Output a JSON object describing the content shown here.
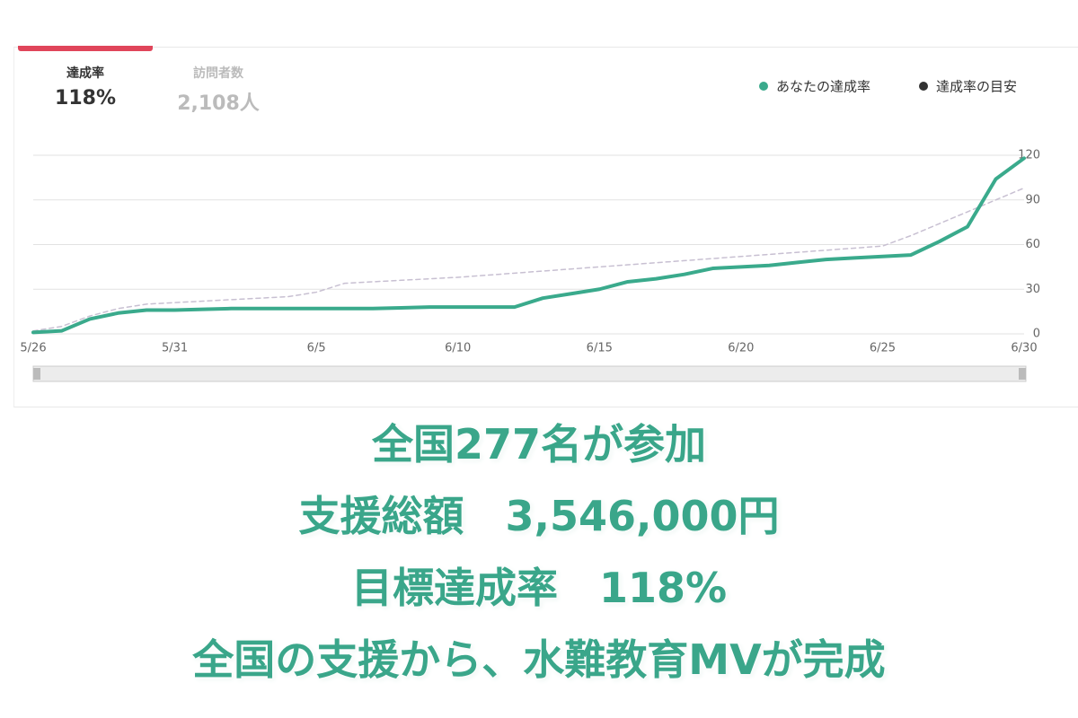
{
  "tabs": [
    {
      "label": "達成率",
      "value": "118%"
    },
    {
      "label": "訪問者数",
      "value": "2,108人"
    }
  ],
  "chart_data": {
    "type": "line",
    "categories": [
      "5/26",
      null,
      null,
      null,
      null,
      "5/31",
      null,
      null,
      null,
      null,
      "6/5",
      null,
      null,
      null,
      null,
      "6/10",
      null,
      null,
      null,
      null,
      "6/15",
      null,
      null,
      null,
      null,
      "6/20",
      null,
      null,
      null,
      null,
      "6/25",
      null,
      null,
      null,
      null,
      "6/30"
    ],
    "series": [
      {
        "name": "あなたの達成率",
        "color": "#3aaa8c",
        "legend_color": "#3aaa8c",
        "dashed": false,
        "values": [
          1,
          2,
          10,
          14,
          16,
          16,
          16.5,
          17,
          17,
          17,
          17,
          17,
          17,
          17.5,
          18,
          18,
          18,
          18,
          24,
          27,
          30,
          35,
          37,
          40,
          44,
          45,
          46,
          48,
          50,
          51,
          52,
          53,
          62,
          72,
          104,
          118
        ]
      },
      {
        "name": "達成率の目安",
        "color": "#c8c0d2",
        "legend_color": "#333333",
        "dashed": true,
        "values": [
          2,
          5,
          12,
          17,
          20,
          21,
          22,
          23,
          24,
          25,
          28,
          34,
          35,
          36,
          37,
          38,
          39.4,
          40.8,
          42.2,
          43.6,
          45,
          46.4,
          47.8,
          49.2,
          50.6,
          52,
          53.4,
          54.8,
          56.2,
          57.6,
          59,
          66,
          74,
          82,
          90,
          98
        ]
      }
    ],
    "ylim": [
      0,
      120
    ],
    "yticks": [
      0,
      30,
      60,
      90,
      120
    ],
    "grid": true
  },
  "caption": [
    "全国277名が参加",
    "支援総額　3,546,000円",
    "目標達成率　118%",
    "全国の支援から、水難教育MVが完成"
  ]
}
